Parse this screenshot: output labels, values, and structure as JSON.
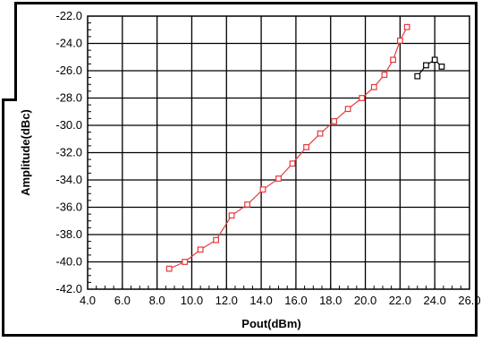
{
  "chart_data": {
    "type": "line",
    "title": "",
    "xlabel": "Pout(dBm)",
    "ylabel": "Amplitude(dBc)",
    "xlim": [
      4.0,
      26.0
    ],
    "ylim": [
      -42.0,
      -22.0
    ],
    "xticks": [
      4.0,
      6.0,
      8.0,
      10.0,
      12.0,
      14.0,
      16.0,
      18.0,
      20.0,
      22.0,
      24.0,
      26.0
    ],
    "yticks": [
      -22.0,
      -24.0,
      -26.0,
      -28.0,
      -30.0,
      -32.0,
      -34.0,
      -36.0,
      -38.0,
      -40.0,
      -42.0
    ],
    "xtick_labels": [
      "4.0",
      "6.0",
      "8.0",
      "10.0",
      "12.0",
      "14.0",
      "16.0",
      "18.0",
      "20.0",
      "22.0",
      "24.0",
      "26.0"
    ],
    "ytick_labels": [
      "-22.0",
      "-24.0",
      "-26.0",
      "-28.0",
      "-30.0",
      "-32.0",
      "-34.0",
      "-36.0",
      "-38.0",
      "-40.0",
      "-42.0"
    ],
    "grid": true,
    "legend": "none",
    "series": [
      {
        "color": "#e8383d",
        "marker": "square",
        "x": [
          8.7,
          9.6,
          10.5,
          11.4,
          12.3,
          13.2,
          14.1,
          15.0,
          15.8,
          16.6,
          17.4,
          18.2,
          19.0,
          19.8,
          20.5,
          21.1,
          21.6,
          22.0,
          22.4
        ],
        "y": [
          -40.5,
          -40.0,
          -39.1,
          -38.4,
          -36.6,
          -35.8,
          -34.7,
          -33.9,
          -32.8,
          -31.6,
          -30.6,
          -29.7,
          -28.8,
          -28.0,
          -27.2,
          -26.3,
          -25.2,
          -23.8,
          -22.8
        ]
      },
      {
        "color": "#000000",
        "marker": "square",
        "x": [
          23.0,
          23.5,
          24.0,
          24.4
        ],
        "y": [
          -26.4,
          -25.6,
          -25.2,
          -25.7
        ]
      }
    ]
  }
}
